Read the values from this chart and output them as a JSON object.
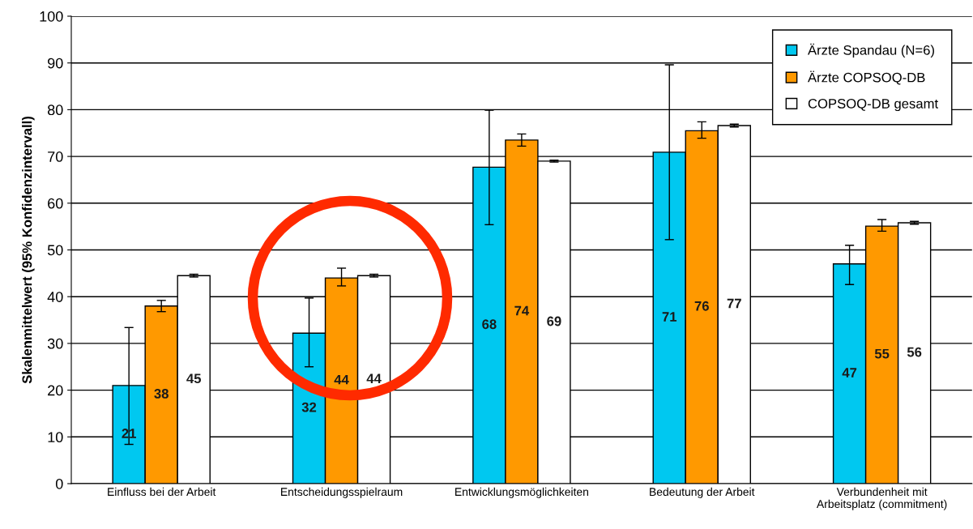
{
  "chart_data": {
    "type": "bar",
    "ylabel": "Skalenmittelwert (95% Konfidenzintervall)",
    "categories": [
      "Einfluss bei der Arbeit",
      "Entscheidungsspielraum",
      "Entwicklungsmöglichkeiten",
      "Bedeutung der Arbeit",
      "Verbundenheit mit\nArbeitsplatz (commitment)"
    ],
    "series": [
      {
        "name": "Ärzte Spandau (N=6)",
        "color": "#00c8f0",
        "values": [
          21.0,
          32.2,
          67.7,
          70.9,
          47.0
        ],
        "errors": [
          [
            8.4,
            33.4
          ],
          [
            25.0,
            39.7
          ],
          [
            55.4,
            79.9
          ],
          [
            52.2,
            89.6
          ],
          [
            42.6,
            51.0
          ]
        ],
        "value_labels": [
          "21",
          "32",
          "68",
          "71",
          "47"
        ]
      },
      {
        "name": "Ärzte COPSOQ-DB",
        "color": "#ff9900",
        "values": [
          38.0,
          44.0,
          73.5,
          75.5,
          55.1
        ],
        "errors": [
          [
            36.8,
            39.2
          ],
          [
            42.3,
            46.1
          ],
          [
            72.2,
            74.8
          ],
          [
            73.9,
            77.4
          ],
          [
            54.0,
            56.5
          ]
        ],
        "value_labels": [
          "38",
          "44",
          "74",
          "76",
          "55"
        ]
      },
      {
        "name": "COPSOQ-DB gesamt",
        "color": "#ffffff",
        "values": [
          44.5,
          44.5,
          69.0,
          76.6,
          55.8
        ],
        "errors": [
          [
            44.2,
            44.8
          ],
          [
            44.2,
            44.8
          ],
          [
            68.8,
            69.2
          ],
          [
            76.3,
            76.9
          ],
          [
            55.5,
            56.1
          ]
        ],
        "value_labels": [
          "45",
          "44",
          "69",
          "77",
          "56"
        ]
      }
    ],
    "ylim": [
      0,
      100
    ],
    "yticks": [
      0,
      10,
      20,
      30,
      40,
      50,
      60,
      70,
      80,
      90,
      100
    ],
    "grid": "y",
    "legend": "top right"
  }
}
